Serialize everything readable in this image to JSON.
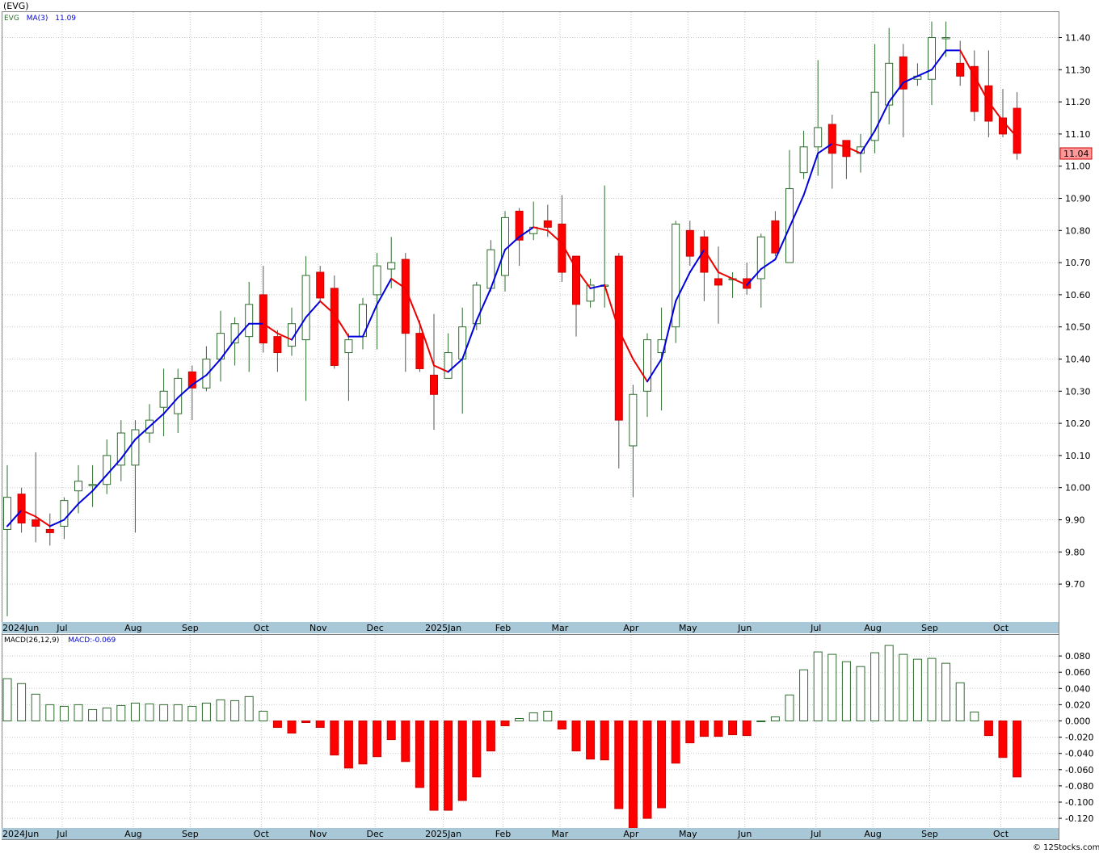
{
  "header": {
    "symbol_title": "(EVG)",
    "footer": "© 12Stocks.com"
  },
  "colors": {
    "up_body": "#ffffff",
    "up_wick": "#2e6b2e",
    "down": "#ff0000",
    "ma_up": "#0000dd",
    "ma_down": "#ee0000",
    "grid": "#c8c8c8",
    "axis_band": "#a8c8d8",
    "macd_pos": "#2e6b2e",
    "macd_neg": "#ff0000"
  },
  "chart_data": [
    {
      "type": "candlestick",
      "legend": {
        "symbol": "EVG",
        "ma_label": "MA(3)",
        "ma_value": "11.09"
      },
      "last_price_label": "11.04",
      "y_ticks": [
        "9.70",
        "9.80",
        "9.90",
        "10.00",
        "10.10",
        "10.20",
        "10.30",
        "10.40",
        "10.50",
        "10.60",
        "10.70",
        "10.80",
        "10.90",
        "11.00",
        "11.10",
        "11.20",
        "11.30",
        "11.40"
      ],
      "ylim": [
        9.6,
        11.48
      ],
      "months": [
        {
          "label": "2024Jun",
          "week": 0
        },
        {
          "label": "Jul",
          "week": 4.2
        },
        {
          "label": "Aug",
          "week": 9.2
        },
        {
          "label": "Sep",
          "week": 13.2
        },
        {
          "label": "Oct",
          "week": 18.2
        },
        {
          "label": "Nov",
          "week": 22.2
        },
        {
          "label": "Dec",
          "week": 26.2
        },
        {
          "label": "2025Jan",
          "week": 31
        },
        {
          "label": "Feb",
          "week": 35.2
        },
        {
          "label": "Mar",
          "week": 39.2
        },
        {
          "label": "Apr",
          "week": 44.2
        },
        {
          "label": "May",
          "week": 48.2
        },
        {
          "label": "Jun",
          "week": 52.2
        },
        {
          "label": "Jul",
          "week": 57.2
        },
        {
          "label": "Aug",
          "week": 61.2
        },
        {
          "label": "Sep",
          "week": 65.2
        },
        {
          "label": "Oct",
          "week": 70.2
        }
      ],
      "candles": [
        [
          9.87,
          9.97,
          9.6,
          10.07
        ],
        [
          9.98,
          9.89,
          9.86,
          10.0
        ],
        [
          9.9,
          9.88,
          9.83,
          10.11
        ],
        [
          9.87,
          9.86,
          9.82,
          9.92
        ],
        [
          9.88,
          9.96,
          9.84,
          9.97
        ],
        [
          9.99,
          10.02,
          9.92,
          10.07
        ],
        [
          10.01,
          10.01,
          9.94,
          10.07
        ],
        [
          10.01,
          10.1,
          9.98,
          10.15
        ],
        [
          10.07,
          10.17,
          10.02,
          10.21
        ],
        [
          10.07,
          10.18,
          9.86,
          10.21
        ],
        [
          10.17,
          10.21,
          10.14,
          10.26
        ],
        [
          10.25,
          10.3,
          10.16,
          10.37
        ],
        [
          10.23,
          10.34,
          10.17,
          10.37
        ],
        [
          10.36,
          10.31,
          10.21,
          10.38
        ],
        [
          10.31,
          10.4,
          10.3,
          10.44
        ],
        [
          10.4,
          10.48,
          10.33,
          10.55
        ],
        [
          10.45,
          10.51,
          10.38,
          10.53
        ],
        [
          10.47,
          10.57,
          10.36,
          10.64
        ],
        [
          10.6,
          10.45,
          10.42,
          10.69
        ],
        [
          10.47,
          10.42,
          10.36,
          10.49
        ],
        [
          10.44,
          10.51,
          10.41,
          10.56
        ],
        [
          10.46,
          10.66,
          10.27,
          10.72
        ],
        [
          10.67,
          10.59,
          10.58,
          10.69
        ],
        [
          10.62,
          10.38,
          10.37,
          10.66
        ],
        [
          10.42,
          10.46,
          10.27,
          10.48
        ],
        [
          10.47,
          10.57,
          10.43,
          10.59
        ],
        [
          10.6,
          10.69,
          10.43,
          10.73
        ],
        [
          10.68,
          10.7,
          10.62,
          10.78
        ],
        [
          10.71,
          10.48,
          10.36,
          10.73
        ],
        [
          10.48,
          10.37,
          10.36,
          10.52
        ],
        [
          10.35,
          10.29,
          10.18,
          10.54
        ],
        [
          10.34,
          10.42,
          10.35,
          10.48
        ],
        [
          10.4,
          10.5,
          10.23,
          10.56
        ],
        [
          10.51,
          10.63,
          10.49,
          10.64
        ],
        [
          10.62,
          10.74,
          10.61,
          10.77
        ],
        [
          10.66,
          10.84,
          10.61,
          10.86
        ],
        [
          10.86,
          10.77,
          10.69,
          10.87
        ],
        [
          10.79,
          10.81,
          10.77,
          10.89
        ],
        [
          10.83,
          10.81,
          10.78,
          10.88
        ],
        [
          10.82,
          10.67,
          10.64,
          10.91
        ],
        [
          10.72,
          10.57,
          10.47,
          10.72
        ],
        [
          10.58,
          10.63,
          10.56,
          10.65
        ],
        [
          10.63,
          10.63,
          10.56,
          10.94
        ],
        [
          10.72,
          10.21,
          10.06,
          10.73
        ],
        [
          10.13,
          10.29,
          9.97,
          10.32
        ],
        [
          10.3,
          10.46,
          10.22,
          10.48
        ],
        [
          10.42,
          10.46,
          10.24,
          10.56
        ],
        [
          10.5,
          10.82,
          10.45,
          10.83
        ],
        [
          10.8,
          10.72,
          10.69,
          10.83
        ],
        [
          10.78,
          10.67,
          10.58,
          10.8
        ],
        [
          10.65,
          10.63,
          10.51,
          10.75
        ],
        [
          10.65,
          10.65,
          10.59,
          10.67
        ],
        [
          10.65,
          10.62,
          10.6,
          10.7
        ],
        [
          10.65,
          10.78,
          10.56,
          10.79
        ],
        [
          10.83,
          10.73,
          10.72,
          10.86
        ],
        [
          10.7,
          10.93,
          10.7,
          11.05
        ],
        [
          10.98,
          11.06,
          10.96,
          11.11
        ],
        [
          11.06,
          11.12,
          10.97,
          11.33
        ],
        [
          11.13,
          11.04,
          10.93,
          11.16
        ],
        [
          11.08,
          11.03,
          10.96,
          11.08
        ],
        [
          11.04,
          11.06,
          10.98,
          11.1
        ],
        [
          11.08,
          11.23,
          11.04,
          11.38
        ],
        [
          11.19,
          11.32,
          11.13,
          11.43
        ],
        [
          11.34,
          11.24,
          11.09,
          11.38
        ],
        [
          11.27,
          11.28,
          11.25,
          11.32
        ],
        [
          11.27,
          11.4,
          11.19,
          11.45
        ],
        [
          11.4,
          11.4,
          11.34,
          11.45
        ],
        [
          11.32,
          11.28,
          11.25,
          11.39
        ],
        [
          11.31,
          11.17,
          11.14,
          11.36
        ],
        [
          11.25,
          11.14,
          11.09,
          11.36
        ],
        [
          11.15,
          11.1,
          11.09,
          11.24
        ],
        [
          11.18,
          11.04,
          11.02,
          11.23
        ]
      ],
      "ma3": [
        9.88,
        9.93,
        9.91,
        9.88,
        9.9,
        9.95,
        9.99,
        10.04,
        10.09,
        10.15,
        10.19,
        10.23,
        10.28,
        10.32,
        10.35,
        10.4,
        10.46,
        10.51,
        10.51,
        10.48,
        10.46,
        10.53,
        10.58,
        10.54,
        10.47,
        10.47,
        10.57,
        10.65,
        10.62,
        10.51,
        10.38,
        10.36,
        10.4,
        10.52,
        10.62,
        10.74,
        10.78,
        10.81,
        10.8,
        10.76,
        10.68,
        10.62,
        10.63,
        10.49,
        10.4,
        10.33,
        10.4,
        10.58,
        10.67,
        10.74,
        10.67,
        10.65,
        10.63,
        10.68,
        10.71,
        10.81,
        10.91,
        11.04,
        11.07,
        11.06,
        11.04,
        11.11,
        11.2,
        11.26,
        11.28,
        11.3,
        11.36,
        11.36,
        11.28,
        11.2,
        11.14,
        11.09
      ]
    },
    {
      "type": "bar",
      "legend": {
        "name": "MACD(26,12,9)",
        "value_label": "MACD:-0.069"
      },
      "y_ticks": [
        "-0.120",
        "-0.100",
        "-0.080",
        "-0.060",
        "-0.040",
        "-0.020",
        "0.000",
        "0.020",
        "0.040",
        "0.060",
        "0.080"
      ],
      "ylim": [
        -0.133,
        0.095
      ],
      "values": [
        0.052,
        0.046,
        0.033,
        0.02,
        0.018,
        0.02,
        0.014,
        0.016,
        0.019,
        0.022,
        0.021,
        0.02,
        0.02,
        0.018,
        0.022,
        0.026,
        0.025,
        0.03,
        0.012,
        -0.008,
        -0.015,
        -0.002,
        -0.008,
        -0.042,
        -0.058,
        -0.053,
        -0.044,
        -0.023,
        -0.05,
        -0.082,
        -0.11,
        -0.11,
        -0.098,
        -0.069,
        -0.037,
        -0.006,
        0.003,
        0.01,
        0.012,
        -0.01,
        -0.037,
        -0.047,
        -0.048,
        -0.108,
        -0.132,
        -0.12,
        -0.107,
        -0.052,
        -0.027,
        -0.019,
        -0.019,
        -0.017,
        -0.018,
        0.0,
        0.005,
        0.032,
        0.063,
        0.085,
        0.082,
        0.073,
        0.067,
        0.084,
        0.093,
        0.082,
        0.076,
        0.077,
        0.071,
        0.047,
        0.011,
        -0.018,
        -0.045,
        -0.069
      ]
    }
  ]
}
